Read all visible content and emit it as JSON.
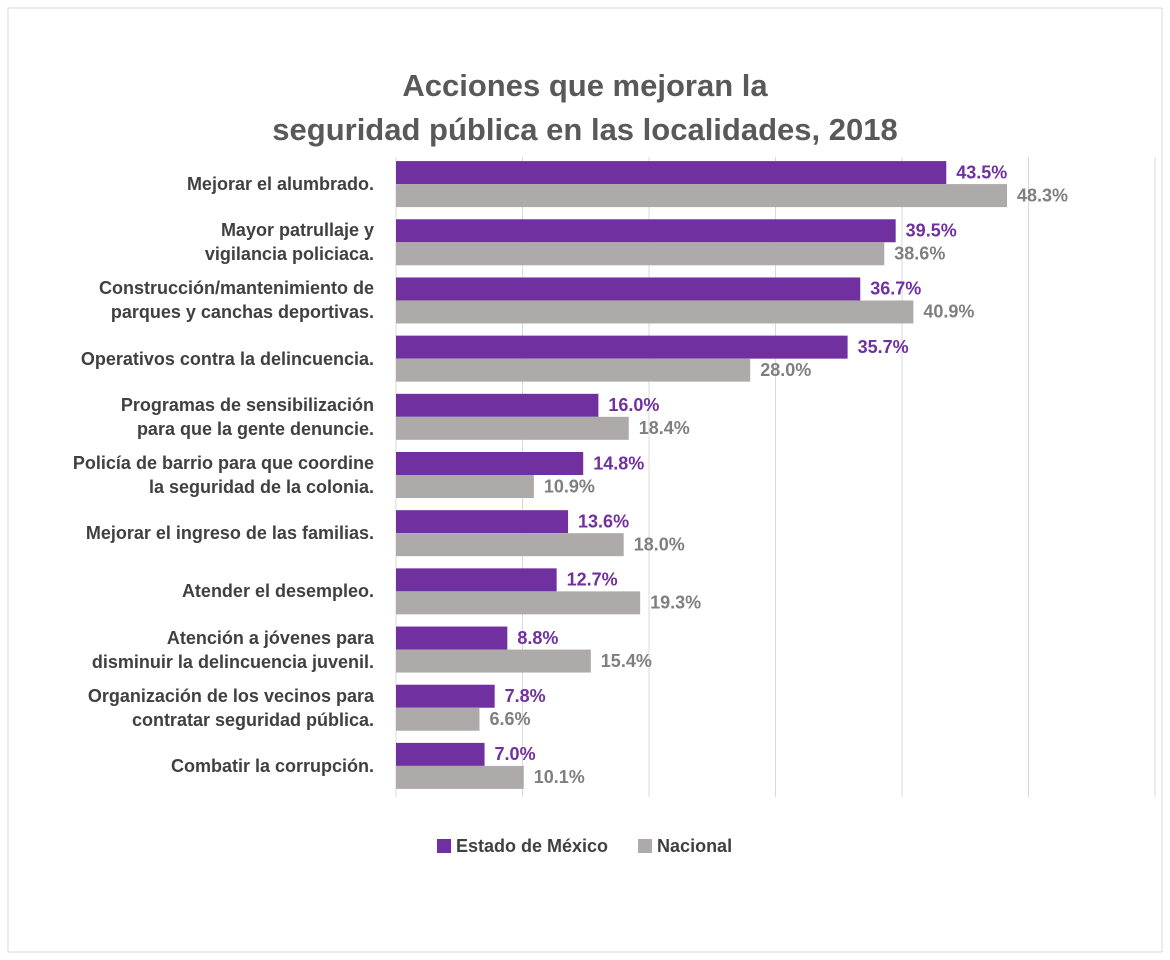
{
  "chart_data": {
    "type": "barh",
    "title": "Acciones que mejoran la\nseguridad pública en las localidades, 2018",
    "categories": [
      "Mejorar el alumbrado.",
      "Mayor patrullaje y\nvigilancia policiaca.",
      "Construcción/mantenimiento de\nparques y canchas deportivas.",
      "Operativos contra la delincuencia.",
      "Programas de sensibilización\npara que la gente denuncie.",
      "Policía de barrio para que coordine\nla seguridad de la colonia.",
      "Mejorar el ingreso de las familias.",
      "Atender el desempleo.",
      "Atención a jóvenes para\ndisminuir la delincuencia juvenil.",
      "Organización de los vecinos para\ncontratar seguridad pública.",
      "Combatir la corrupción."
    ],
    "series": [
      {
        "name": "Estado de México",
        "color": "#7030a0",
        "values": [
          43.5,
          39.5,
          36.7,
          35.7,
          16.0,
          14.8,
          13.6,
          12.7,
          8.8,
          7.8,
          7.0
        ],
        "value_labels": [
          "43.5%",
          "39.5%",
          "36.7%",
          "35.7%",
          "16.0%",
          "14.8%",
          "13.6%",
          "12.7%",
          "8.8%",
          "7.8%",
          "7.0%"
        ]
      },
      {
        "name": "Nacional",
        "color": "#aeaaaa",
        "values": [
          48.3,
          38.6,
          40.9,
          28.0,
          18.4,
          10.9,
          18.0,
          19.3,
          15.4,
          6.6,
          10.1
        ],
        "value_labels": [
          "48.3%",
          "38.6%",
          "40.9%",
          "28.0%",
          "18.4%",
          "10.9%",
          "18.0%",
          "19.3%",
          "15.4%",
          "6.6%",
          "10.1%"
        ]
      }
    ],
    "xlim": [
      0,
      60
    ],
    "xticks": [
      0,
      10,
      20,
      30,
      40,
      50,
      60
    ],
    "grid": true,
    "legend": "bottom"
  }
}
